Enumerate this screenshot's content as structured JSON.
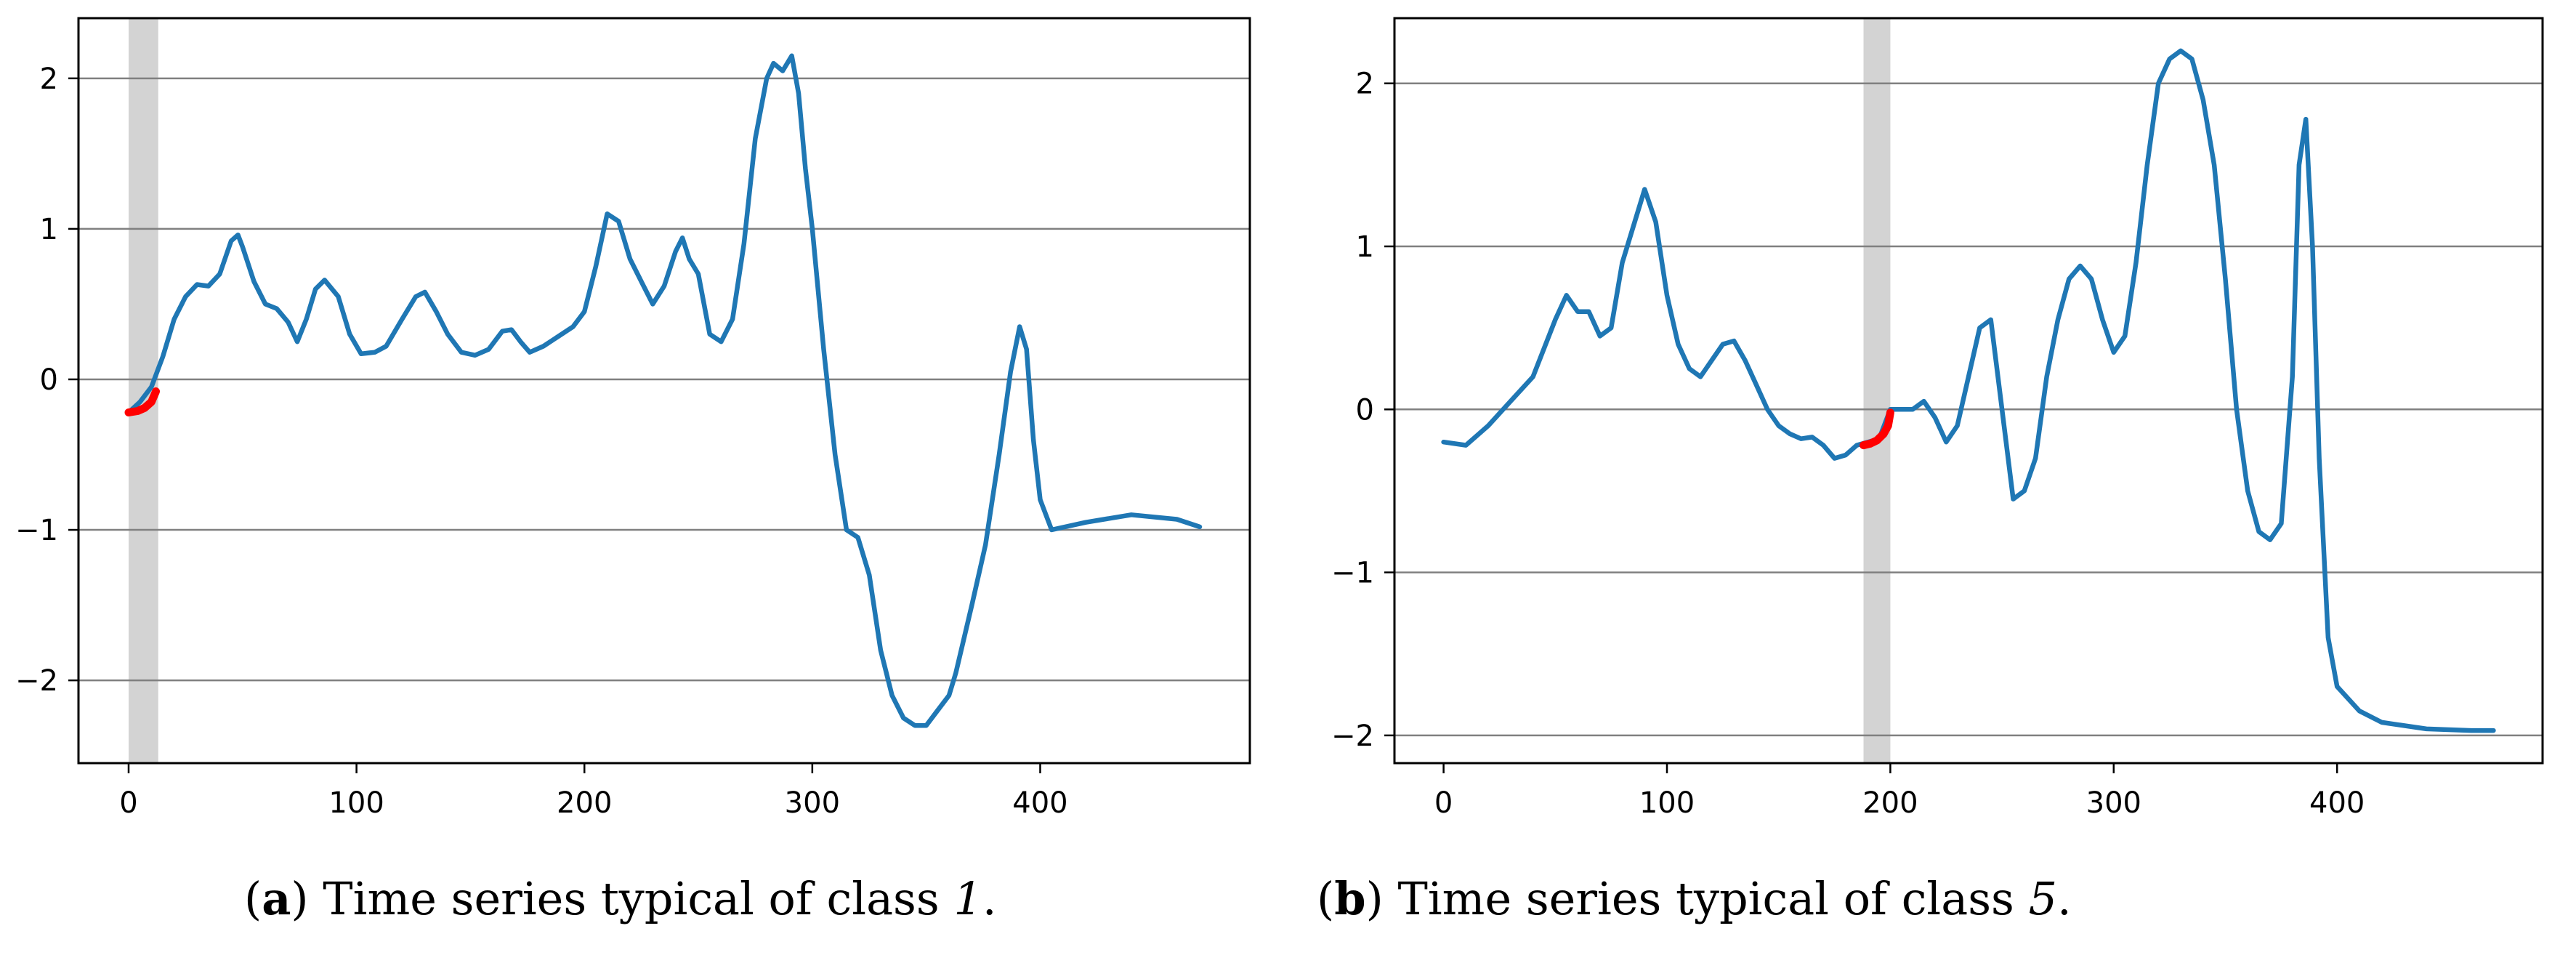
{
  "figures": [
    {
      "caption": {
        "letter": "a",
        "text": "Time series typical of class ",
        "class_value": "1",
        "suffix": "."
      }
    },
    {
      "caption": {
        "letter": "b",
        "text": "Time series typical of class ",
        "class_value": "5",
        "suffix": "."
      }
    }
  ],
  "colors": {
    "series": "#1f77b4",
    "highlight": "#ff0000",
    "shade": "#d3d3d3",
    "grid": "#808080",
    "axis": "#000000"
  },
  "chart_data": [
    {
      "type": "line",
      "xlim": [
        -22,
        492
      ],
      "ylim": [
        -2.55,
        2.4
      ],
      "x_ticks": [
        0,
        100,
        200,
        300,
        400
      ],
      "y_ticks": [
        -2,
        -1,
        0,
        1,
        2
      ],
      "grid": "horizontal",
      "shaded_region": [
        0,
        13
      ],
      "series": [
        {
          "role": "main",
          "color": "#1f77b4",
          "points": [
            [
              0,
              -0.22
            ],
            [
              5,
              -0.15
            ],
            [
              10,
              -0.05
            ],
            [
              15,
              0.15
            ],
            [
              20,
              0.4
            ],
            [
              25,
              0.55
            ],
            [
              30,
              0.63
            ],
            [
              35,
              0.62
            ],
            [
              40,
              0.7
            ],
            [
              45,
              0.92
            ],
            [
              48,
              0.96
            ],
            [
              50,
              0.88
            ],
            [
              55,
              0.65
            ],
            [
              60,
              0.5
            ],
            [
              65,
              0.47
            ],
            [
              70,
              0.38
            ],
            [
              74,
              0.25
            ],
            [
              78,
              0.4
            ],
            [
              82,
              0.6
            ],
            [
              86,
              0.66
            ],
            [
              92,
              0.55
            ],
            [
              97,
              0.3
            ],
            [
              102,
              0.17
            ],
            [
              108,
              0.18
            ],
            [
              113,
              0.22
            ],
            [
              120,
              0.4
            ],
            [
              126,
              0.55
            ],
            [
              130,
              0.58
            ],
            [
              135,
              0.45
            ],
            [
              140,
              0.3
            ],
            [
              146,
              0.18
            ],
            [
              152,
              0.16
            ],
            [
              158,
              0.2
            ],
            [
              164,
              0.32
            ],
            [
              168,
              0.33
            ],
            [
              172,
              0.25
            ],
            [
              176,
              0.18
            ],
            [
              182,
              0.22
            ],
            [
              188,
              0.28
            ],
            [
              195,
              0.35
            ],
            [
              200,
              0.45
            ],
            [
              205,
              0.75
            ],
            [
              210,
              1.1
            ],
            [
              215,
              1.05
            ],
            [
              220,
              0.8
            ],
            [
              225,
              0.65
            ],
            [
              230,
              0.5
            ],
            [
              235,
              0.62
            ],
            [
              240,
              0.85
            ],
            [
              243,
              0.94
            ],
            [
              246,
              0.8
            ],
            [
              250,
              0.7
            ],
            [
              255,
              0.3
            ],
            [
              260,
              0.25
            ],
            [
              265,
              0.4
            ],
            [
              270,
              0.9
            ],
            [
              275,
              1.6
            ],
            [
              280,
              2.0
            ],
            [
              283,
              2.1
            ],
            [
              287,
              2.05
            ],
            [
              291,
              2.15
            ],
            [
              294,
              1.9
            ],
            [
              297,
              1.4
            ],
            [
              300,
              1.0
            ],
            [
              305,
              0.2
            ],
            [
              310,
              -0.5
            ],
            [
              315,
              -1.0
            ],
            [
              320,
              -1.05
            ],
            [
              325,
              -1.3
            ],
            [
              330,
              -1.8
            ],
            [
              335,
              -2.1
            ],
            [
              340,
              -2.25
            ],
            [
              345,
              -2.3
            ],
            [
              350,
              -2.3
            ],
            [
              355,
              -2.2
            ],
            [
              360,
              -2.1
            ],
            [
              363,
              -1.95
            ],
            [
              370,
              -1.5
            ],
            [
              376,
              -1.1
            ],
            [
              382,
              -0.5
            ],
            [
              387,
              0.05
            ],
            [
              391,
              0.35
            ],
            [
              394,
              0.2
            ],
            [
              397,
              -0.4
            ],
            [
              400,
              -0.8
            ],
            [
              405,
              -1.0
            ],
            [
              420,
              -0.95
            ],
            [
              440,
              -0.9
            ],
            [
              460,
              -0.93
            ],
            [
              470,
              -0.98
            ]
          ]
        },
        {
          "role": "highlight",
          "color": "#ff0000",
          "points": [
            [
              0,
              -0.22
            ],
            [
              4,
              -0.21
            ],
            [
              7,
              -0.19
            ],
            [
              10,
              -0.15
            ],
            [
              12,
              -0.08
            ]
          ]
        }
      ]
    },
    {
      "type": "line",
      "xlim": [
        -22,
        492
      ],
      "ylim": [
        -2.17,
        2.4
      ],
      "x_ticks": [
        0,
        100,
        200,
        300,
        400
      ],
      "y_ticks": [
        -2,
        -1,
        0,
        1,
        2
      ],
      "grid": "horizontal",
      "shaded_region": [
        188,
        200
      ],
      "series": [
        {
          "role": "main",
          "color": "#1f77b4",
          "points": [
            [
              0,
              -0.2
            ],
            [
              10,
              -0.22
            ],
            [
              20,
              -0.1
            ],
            [
              30,
              0.05
            ],
            [
              40,
              0.2
            ],
            [
              50,
              0.55
            ],
            [
              55,
              0.7
            ],
            [
              60,
              0.6
            ],
            [
              65,
              0.6
            ],
            [
              70,
              0.45
            ],
            [
              75,
              0.5
            ],
            [
              80,
              0.9
            ],
            [
              90,
              1.35
            ],
            [
              95,
              1.15
            ],
            [
              100,
              0.7
            ],
            [
              105,
              0.4
            ],
            [
              110,
              0.25
            ],
            [
              115,
              0.2
            ],
            [
              120,
              0.3
            ],
            [
              125,
              0.4
            ],
            [
              130,
              0.42
            ],
            [
              135,
              0.3
            ],
            [
              140,
              0.15
            ],
            [
              145,
              0.0
            ],
            [
              150,
              -0.1
            ],
            [
              155,
              -0.15
            ],
            [
              160,
              -0.18
            ],
            [
              165,
              -0.17
            ],
            [
              170,
              -0.22
            ],
            [
              175,
              -0.3
            ],
            [
              180,
              -0.28
            ],
            [
              185,
              -0.22
            ],
            [
              190,
              -0.2
            ],
            [
              195,
              -0.18
            ],
            [
              200,
              0.0
            ],
            [
              205,
              0.0
            ],
            [
              210,
              0.0
            ],
            [
              215,
              0.05
            ],
            [
              220,
              -0.05
            ],
            [
              225,
              -0.2
            ],
            [
              230,
              -0.1
            ],
            [
              235,
              0.2
            ],
            [
              240,
              0.5
            ],
            [
              245,
              0.55
            ],
            [
              250,
              0.0
            ],
            [
              255,
              -0.55
            ],
            [
              260,
              -0.5
            ],
            [
              265,
              -0.3
            ],
            [
              270,
              0.2
            ],
            [
              275,
              0.55
            ],
            [
              280,
              0.8
            ],
            [
              285,
              0.88
            ],
            [
              290,
              0.8
            ],
            [
              295,
              0.55
            ],
            [
              300,
              0.35
            ],
            [
              305,
              0.45
            ],
            [
              310,
              0.9
            ],
            [
              315,
              1.5
            ],
            [
              320,
              2.0
            ],
            [
              325,
              2.15
            ],
            [
              330,
              2.2
            ],
            [
              335,
              2.15
            ],
            [
              340,
              1.9
            ],
            [
              345,
              1.5
            ],
            [
              350,
              0.8
            ],
            [
              355,
              0.0
            ],
            [
              360,
              -0.5
            ],
            [
              365,
              -0.75
            ],
            [
              370,
              -0.8
            ],
            [
              375,
              -0.7
            ],
            [
              380,
              0.2
            ],
            [
              383,
              1.5
            ],
            [
              386,
              1.78
            ],
            [
              389,
              1.0
            ],
            [
              392,
              -0.3
            ],
            [
              396,
              -1.4
            ],
            [
              400,
              -1.7
            ],
            [
              410,
              -1.85
            ],
            [
              420,
              -1.92
            ],
            [
              440,
              -1.96
            ],
            [
              460,
              -1.97
            ],
            [
              470,
              -1.97
            ]
          ]
        },
        {
          "role": "highlight",
          "color": "#ff0000",
          "points": [
            [
              188,
              -0.22
            ],
            [
              191,
              -0.21
            ],
            [
              194,
              -0.19
            ],
            [
              197,
              -0.15
            ],
            [
              199,
              -0.1
            ],
            [
              200,
              -0.02
            ]
          ]
        }
      ]
    }
  ]
}
